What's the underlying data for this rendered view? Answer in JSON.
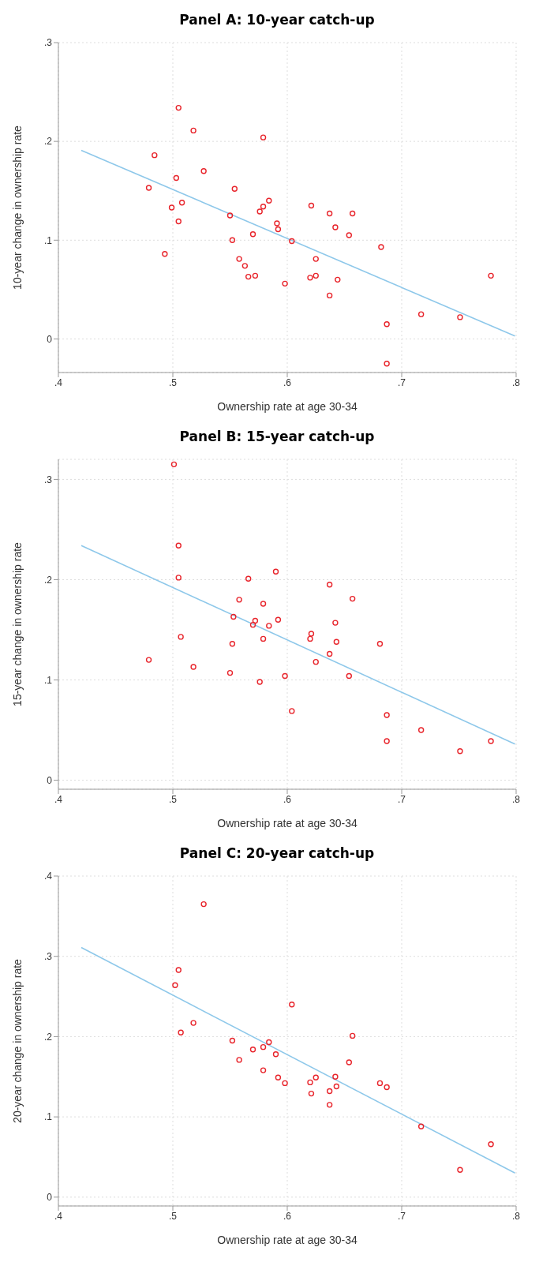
{
  "chart_data": [
    {
      "type": "scatter",
      "title": "Panel A: 10-year catch-up",
      "xlabel": "Ownership rate at age 30-34",
      "ylabel": "10-year change in ownership rate",
      "xlim": [
        0.4,
        0.8
      ],
      "xticks": [
        {
          "value": 0.4,
          "label": ".4"
        },
        {
          "value": 0.5,
          "label": ".5"
        },
        {
          "value": 0.6,
          "label": ".6"
        },
        {
          "value": 0.7,
          "label": ".7"
        },
        {
          "value": 0.8,
          "label": ".8"
        }
      ],
      "ylim": [
        -0.034,
        0.3
      ],
      "yticks": [
        {
          "value": 0,
          "label": "0"
        },
        {
          "value": 0.1,
          "label": ".1"
        },
        {
          "value": 0.2,
          "label": ".2"
        },
        {
          "value": 0.3,
          "label": ".3"
        }
      ],
      "grid": true,
      "series": [
        {
          "marker": "circle",
          "color": "#e8242b",
          "x": [
            0.479,
            0.484,
            0.493,
            0.499,
            0.503,
            0.505,
            0.505,
            0.508,
            0.518,
            0.527,
            0.55,
            0.552,
            0.554,
            0.558,
            0.563,
            0.566,
            0.57,
            0.572,
            0.576,
            0.579,
            0.579,
            0.584,
            0.591,
            0.592,
            0.598,
            0.604,
            0.62,
            0.621,
            0.625,
            0.625,
            0.637,
            0.637,
            0.642,
            0.644,
            0.654,
            0.657,
            0.682,
            0.687,
            0.687,
            0.717,
            0.751,
            0.778
          ],
          "values": [
            0.153,
            0.186,
            0.086,
            0.133,
            0.163,
            0.234,
            0.119,
            0.138,
            0.211,
            0.17,
            0.125,
            0.1,
            0.152,
            0.081,
            0.074,
            0.063,
            0.106,
            0.064,
            0.129,
            0.134,
            0.204,
            0.14,
            0.117,
            0.111,
            0.056,
            0.099,
            0.062,
            0.135,
            0.081,
            0.064,
            0.127,
            0.044,
            0.113,
            0.06,
            0.105,
            0.127,
            0.093,
            0.015,
            -0.025,
            0.025,
            0.022,
            0.064
          ]
        },
        {
          "type": "line",
          "color": "#8ec8ea",
          "x": [
            0.42,
            0.799
          ],
          "values": [
            0.191,
            0.003
          ]
        }
      ]
    },
    {
      "type": "scatter",
      "title": "Panel B: 15-year catch-up",
      "xlabel": "Ownership rate at age 30-34",
      "ylabel": "15-year change in ownership rate",
      "xlim": [
        0.4,
        0.8
      ],
      "xticks": [
        {
          "value": 0.4,
          "label": ".4"
        },
        {
          "value": 0.5,
          "label": ".5"
        },
        {
          "value": 0.6,
          "label": ".6"
        },
        {
          "value": 0.7,
          "label": ".7"
        },
        {
          "value": 0.8,
          "label": ".8"
        }
      ],
      "ylim": [
        -0.009,
        0.32
      ],
      "yticks": [
        {
          "value": 0,
          "label": "0"
        },
        {
          "value": 0.1,
          "label": ".1"
        },
        {
          "value": 0.2,
          "label": ".2"
        },
        {
          "value": 0.3,
          "label": ".3"
        }
      ],
      "grid": true,
      "series": [
        {
          "marker": "circle",
          "color": "#e8242b",
          "x": [
            0.479,
            0.501,
            0.505,
            0.505,
            0.507,
            0.518,
            0.55,
            0.552,
            0.553,
            0.558,
            0.566,
            0.57,
            0.572,
            0.576,
            0.579,
            0.579,
            0.584,
            0.59,
            0.592,
            0.598,
            0.604,
            0.62,
            0.621,
            0.625,
            0.637,
            0.637,
            0.642,
            0.643,
            0.654,
            0.657,
            0.681,
            0.687,
            0.687,
            0.717,
            0.751,
            0.778
          ],
          "values": [
            0.12,
            0.315,
            0.234,
            0.202,
            0.143,
            0.113,
            0.107,
            0.136,
            0.163,
            0.18,
            0.201,
            0.155,
            0.159,
            0.098,
            0.176,
            0.141,
            0.154,
            0.208,
            0.16,
            0.104,
            0.069,
            0.141,
            0.146,
            0.118,
            0.195,
            0.126,
            0.157,
            0.138,
            0.104,
            0.181,
            0.136,
            0.065,
            0.039,
            0.05,
            0.029,
            0.039
          ]
        },
        {
          "type": "line",
          "color": "#8ec8ea",
          "x": [
            0.42,
            0.799
          ],
          "values": [
            0.234,
            0.036
          ]
        }
      ]
    },
    {
      "type": "scatter",
      "title": "Panel C: 20-year catch-up",
      "xlabel": "Ownership rate at age 30-34",
      "ylabel": "20-year change in ownership rate",
      "xlim": [
        0.4,
        0.8
      ],
      "xticks": [
        {
          "value": 0.4,
          "label": ".4"
        },
        {
          "value": 0.5,
          "label": ".5"
        },
        {
          "value": 0.6,
          "label": ".6"
        },
        {
          "value": 0.7,
          "label": ".7"
        },
        {
          "value": 0.8,
          "label": ".8"
        }
      ],
      "ylim": [
        -0.011,
        0.4
      ],
      "yticks": [
        {
          "value": 0,
          "label": "0"
        },
        {
          "value": 0.1,
          "label": ".1"
        },
        {
          "value": 0.2,
          "label": ".2"
        },
        {
          "value": 0.3,
          "label": ".3"
        },
        {
          "value": 0.4,
          "label": ".4"
        }
      ],
      "grid": true,
      "series": [
        {
          "marker": "circle",
          "color": "#e8242b",
          "x": [
            0.527,
            0.505,
            0.502,
            0.518,
            0.507,
            0.604,
            0.552,
            0.558,
            0.57,
            0.579,
            0.584,
            0.59,
            0.579,
            0.592,
            0.598,
            0.657,
            0.654,
            0.62,
            0.621,
            0.625,
            0.642,
            0.643,
            0.637,
            0.637,
            0.681,
            0.687,
            0.717,
            0.751,
            0.778
          ],
          "values": [
            0.365,
            0.283,
            0.264,
            0.217,
            0.205,
            0.24,
            0.195,
            0.171,
            0.184,
            0.187,
            0.193,
            0.178,
            0.158,
            0.149,
            0.142,
            0.201,
            0.168,
            0.143,
            0.129,
            0.149,
            0.15,
            0.138,
            0.132,
            0.115,
            0.142,
            0.137,
            0.088,
            0.034,
            0.066
          ]
        },
        {
          "type": "line",
          "color": "#8ec8ea",
          "x": [
            0.42,
            0.799
          ],
          "values": [
            0.311,
            0.03
          ]
        }
      ]
    }
  ]
}
